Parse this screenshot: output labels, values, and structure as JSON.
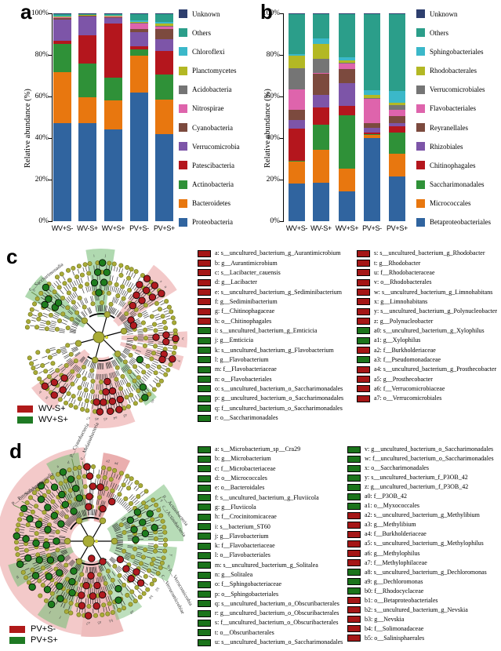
{
  "chart_data": [
    {
      "id": "a",
      "panel_label": "a",
      "type": "bar",
      "stacked": true,
      "title": "",
      "xlabel": "",
      "ylabel": "Relative abundance (%)",
      "ylim": [
        0,
        100
      ],
      "yticks": [
        "0%",
        "20%",
        "40%",
        "60%",
        "80%",
        "100%"
      ],
      "legend_position": "right",
      "grid": false,
      "categories": [
        "WV+S-",
        "WV-S+",
        "WV+S+",
        "PV+S-",
        "PV+S+"
      ],
      "series": [
        {
          "name": "Proteobacteria",
          "color": "#30649f",
          "values": [
            47.5,
            47.5,
            44,
            62,
            42
          ]
        },
        {
          "name": "Bacteroidetes",
          "color": "#e8770f",
          "values": [
            25,
            12.5,
            14,
            17.5,
            16.5
          ]
        },
        {
          "name": "Actinobacteria",
          "color": "#2f9138",
          "values": [
            13.5,
            16.5,
            11,
            3,
            12
          ]
        },
        {
          "name": "Patescibacteria",
          "color": "#b4161d",
          "values": [
            1.5,
            13.5,
            26,
            1.5,
            11.5
          ]
        },
        {
          "name": "Verrucomicrobia",
          "color": "#7d55a8",
          "values": [
            10.5,
            9.5,
            3,
            7,
            5.5
          ]
        },
        {
          "name": "Cyanobacteria",
          "color": "#7c4a3e",
          "values": [
            1,
            0.3,
            0.3,
            1.5,
            5
          ]
        },
        {
          "name": "Nitrospirae",
          "color": "#de64ac",
          "values": [
            0.2,
            0.2,
            0.3,
            2.5,
            1
          ]
        },
        {
          "name": "Acidobacteria",
          "color": "#757575",
          "values": [
            0.2,
            0.1,
            0.2,
            0.3,
            0.5
          ]
        },
        {
          "name": "Planctomycetes",
          "color": "#b3b824",
          "values": [
            0.2,
            0.1,
            0.2,
            0.5,
            1
          ]
        },
        {
          "name": "Chloroflexi",
          "color": "#3bb8c9",
          "values": [
            0.2,
            0.1,
            0.5,
            0.7,
            1
          ]
        },
        {
          "name": "Others",
          "color": "#2b9e8a",
          "values": [
            1,
            0.3,
            0.3,
            3,
            3.5
          ]
        },
        {
          "name": "Unknown",
          "color": "#2e3f6e",
          "values": [
            0.2,
            0.2,
            0.2,
            0.5,
            0.5
          ]
        }
      ]
    },
    {
      "id": "b",
      "panel_label": "b",
      "type": "bar",
      "stacked": true,
      "title": "",
      "xlabel": "",
      "ylabel": "Relative abundance (%)",
      "ylim": [
        0,
        100
      ],
      "yticks": [
        "0%",
        "20%",
        "40%",
        "60%",
        "80%",
        "100%"
      ],
      "legend_position": "right",
      "grid": false,
      "categories": [
        "WV+S-",
        "WV-S+",
        "WV+S+",
        "PV+S-",
        "PV+S+"
      ],
      "series": [
        {
          "name": "Betaproteobacteriales",
          "color": "#30649f",
          "values": [
            18,
            18.5,
            14.5,
            40,
            21.5
          ]
        },
        {
          "name": "Micrococcales",
          "color": "#e8770f",
          "values": [
            10.5,
            16,
            11,
            1.5,
            11
          ]
        },
        {
          "name": "Saccharimonadales",
          "color": "#2f9138",
          "values": [
            0.5,
            12,
            25.5,
            0.3,
            10
          ]
        },
        {
          "name": "Chitinophagales",
          "color": "#b4161d",
          "values": [
            15.5,
            8.5,
            4.5,
            1,
            3
          ]
        },
        {
          "name": "Rhizobiales",
          "color": "#7d55a8",
          "values": [
            4,
            6,
            11,
            2,
            1.5
          ]
        },
        {
          "name": "Reyranellales",
          "color": "#7c4a3e",
          "values": [
            5,
            10,
            7,
            2.5,
            3.5
          ]
        },
        {
          "name": "Flavobacteriales",
          "color": "#de64ac",
          "values": [
            10,
            0.5,
            2.5,
            11.5,
            3
          ]
        },
        {
          "name": "Verrucomicrobiales",
          "color": "#757575",
          "values": [
            10,
            7,
            0.5,
            0.3,
            2.5
          ]
        },
        {
          "name": "Rhodobacterales",
          "color": "#b3b824",
          "values": [
            6,
            7,
            1,
            1.5,
            1
          ]
        },
        {
          "name": "Sphingobacteriales",
          "color": "#3bb8c9",
          "values": [
            1,
            2.5,
            1.5,
            2.5,
            5.5
          ]
        },
        {
          "name": "Others",
          "color": "#2b9e8a",
          "values": [
            19,
            12,
            21,
            36.5,
            37
          ]
        },
        {
          "name": "Unknown",
          "color": "#2e3f6e",
          "values": [
            0.5,
            0.3,
            0.3,
            0.4,
            0.5
          ]
        }
      ]
    }
  ],
  "lefse_colors": {
    "red": "#a51616",
    "green": "#1b741b"
  },
  "panel_c": {
    "label": "c",
    "groups": [
      {
        "label": "WV-S+",
        "color": "#b01a1a"
      },
      {
        "label": "WV+S+",
        "color": "#1f7a24"
      }
    ],
    "clade_labels": [
      {
        "text": "c__Saccharimonadia",
        "a": 303,
        "r": 108,
        "rot": -38
      }
    ],
    "tip_letters": [
      {
        "a": 47,
        "t": "s"
      },
      {
        "a": 52,
        "t": "u"
      },
      {
        "a": 91,
        "t": "w"
      },
      {
        "a": 107,
        "t": "y"
      },
      {
        "a": 163,
        "t": "a2"
      },
      {
        "a": 170,
        "t": "a4"
      },
      {
        "a": 177,
        "t": "a5"
      },
      {
        "a": 183,
        "t": "a6"
      },
      {
        "a": 189,
        "t": "a7"
      },
      {
        "a": 222,
        "t": "g"
      },
      {
        "a": 228,
        "t": "h"
      },
      {
        "a": 355,
        "t": "i"
      },
      {
        "a": 3,
        "t": "j"
      },
      {
        "a": 305,
        "t": "o"
      },
      {
        "a": 311,
        "t": "r"
      },
      {
        "a": 141,
        "t": "a0"
      }
    ],
    "legend_col1": [
      {
        "key": "a",
        "text": "s__uncultured_bacterium_g_Aurantimicrobium",
        "group": "red"
      },
      {
        "key": "b",
        "text": "g__Aurantimicrobium",
        "group": "red"
      },
      {
        "key": "c",
        "text": "s__Lacibacter_cauensis",
        "group": "red"
      },
      {
        "key": "d",
        "text": "g__Lacibacter",
        "group": "red"
      },
      {
        "key": "e",
        "text": "s__uncultured_bacterium_g_Sediminibacterium",
        "group": "red"
      },
      {
        "key": "f",
        "text": "g__Sediminibacterium",
        "group": "red"
      },
      {
        "key": "g",
        "text": "f__Chitinophagaceae",
        "group": "red"
      },
      {
        "key": "h",
        "text": "o__Chitinophagales",
        "group": "red"
      },
      {
        "key": "i",
        "text": "s__uncultured_bacterium_g_Emticicia",
        "group": "green"
      },
      {
        "key": "j",
        "text": "g__Emticicia",
        "group": "green"
      },
      {
        "key": "k",
        "text": "s__uncultured_bacterium_g_Flavobacterium",
        "group": "green"
      },
      {
        "key": "l",
        "text": "g__Flavobacterium",
        "group": "green"
      },
      {
        "key": "m",
        "text": "f__Flavobacteriaceae",
        "group": "green"
      },
      {
        "key": "n",
        "text": "o__Flavobacteriales",
        "group": "green"
      },
      {
        "key": "o",
        "text": "s__uncultured_bacterium_o_Saccharimonadales",
        "group": "green"
      },
      {
        "key": "p",
        "text": "g__uncultured_bacterium_o_Saccharimonadales",
        "group": "green"
      },
      {
        "key": "q",
        "text": "f__uncultured_bacterium_o_Saccharimonadales",
        "group": "green"
      },
      {
        "key": "r",
        "text": "o__Saccharimonadales",
        "group": "green"
      }
    ],
    "legend_col2": [
      {
        "key": "s",
        "text": "s__uncultured_bacterium_g_Rhodobacter",
        "group": "red"
      },
      {
        "key": "t",
        "text": "g__Rhodobacter",
        "group": "red"
      },
      {
        "key": "u",
        "text": "f__Rhodobacteraceae",
        "group": "red"
      },
      {
        "key": "v",
        "text": "o__Rhodobacterales",
        "group": "red"
      },
      {
        "key": "w",
        "text": "s__uncultured_bacterium_g_Limnohabitans",
        "group": "red"
      },
      {
        "key": "x",
        "text": "g__Limnohabitans",
        "group": "red"
      },
      {
        "key": "y",
        "text": "s__uncultured_bacterium_g_Polynucleobacter",
        "group": "red"
      },
      {
        "key": "z",
        "text": "g__Polynucleobacter",
        "group": "red"
      },
      {
        "key": "a0",
        "text": "s__uncultured_bacterium_g_Xylophilus",
        "group": "green"
      },
      {
        "key": "a1",
        "text": "g__Xylophilus",
        "group": "green"
      },
      {
        "key": "a2",
        "text": "f__Burkholderiaceae",
        "group": "red"
      },
      {
        "key": "a3",
        "text": "f__Pseudomonadaceae",
        "group": "green"
      },
      {
        "key": "a4",
        "text": "s__uncultured_bacterium_g_Prosthecobacter",
        "group": "red"
      },
      {
        "key": "a5",
        "text": "g__Prosthecobacter",
        "group": "red"
      },
      {
        "key": "a6",
        "text": "f__Verrucomicrobiaceae",
        "group": "red"
      },
      {
        "key": "a7",
        "text": "o__Verrucomicrobiales",
        "group": "red"
      }
    ]
  },
  "panel_d": {
    "label": "d",
    "groups": [
      {
        "label": "PV+S-",
        "color": "#b01a1a"
      },
      {
        "label": "PV+S+",
        "color": "#1f7a24"
      }
    ],
    "clade_labels": [
      {
        "text": "p__Cyanobacteria",
        "a": 347,
        "r": 110,
        "rot": -62
      },
      {
        "text": "c__Melainabacteria",
        "a": 354,
        "r": 104,
        "rot": -66
      },
      {
        "text": "p__Patescibacteria",
        "a": 295,
        "r": 110,
        "rot": -35
      },
      {
        "text": "c__Saccharimonadia",
        "a": 300,
        "r": 104,
        "rot": -38
      },
      {
        "text": "p__Actinobacteria",
        "a": 58,
        "r": 108,
        "rot": 52
      },
      {
        "text": "c__Actinobacteria",
        "a": 64,
        "r": 101,
        "rot": 55
      },
      {
        "text": "p__Verrucomicrobia",
        "a": 110,
        "r": 106,
        "rot": 60
      },
      {
        "text": "c__Verrucomicrobiae",
        "a": 116,
        "r": 100,
        "rot": 62
      }
    ],
    "tip_letters": [
      {
        "a": 12,
        "t": "a2"
      },
      {
        "a": 18,
        "t": "a4"
      },
      {
        "a": 60,
        "t": "q"
      },
      {
        "a": 68,
        "t": "t"
      },
      {
        "a": 100,
        "t": "y"
      },
      {
        "a": 108,
        "t": "a0"
      },
      {
        "a": 126,
        "t": "b2"
      },
      {
        "a": 133,
        "t": "b4"
      },
      {
        "a": 150,
        "t": "a8"
      },
      {
        "a": 166,
        "t": "b1"
      },
      {
        "a": 174,
        "t": "a5"
      },
      {
        "a": 182,
        "t": "a7"
      },
      {
        "a": 202,
        "t": "f"
      },
      {
        "a": 210,
        "t": "l"
      },
      {
        "a": 244,
        "t": "m"
      },
      {
        "a": 336,
        "t": "a"
      },
      {
        "a": 344,
        "t": "d"
      }
    ],
    "legend_col1": [
      {
        "key": "a",
        "text": "s__Microbacterium_sp__Cra29",
        "group": "green"
      },
      {
        "key": "b",
        "text": "g__Microbacterium",
        "group": "green"
      },
      {
        "key": "c",
        "text": "f__Microbacteriaceae",
        "group": "green"
      },
      {
        "key": "d",
        "text": "o__Micrococcales",
        "group": "green"
      },
      {
        "key": "e",
        "text": "o__Bacteroidales",
        "group": "green"
      },
      {
        "key": "f",
        "text": "s__uncultured_bacterium_g_Fluviicola",
        "group": "green"
      },
      {
        "key": "g",
        "text": "g__Fluviicola",
        "group": "green"
      },
      {
        "key": "h",
        "text": "f__Crocinitomicaceae",
        "group": "green"
      },
      {
        "key": "i",
        "text": "s__bacterium_ST60",
        "group": "green"
      },
      {
        "key": "j",
        "text": "g__Flavobacterium",
        "group": "green"
      },
      {
        "key": "k",
        "text": "f__Flavobacteriaceae",
        "group": "green"
      },
      {
        "key": "l",
        "text": "o__Flavobacteriales",
        "group": "green"
      },
      {
        "key": "m",
        "text": "s__uncultured_bacterium_g_Solitalea",
        "group": "green"
      },
      {
        "key": "n",
        "text": "g__Solitalea",
        "group": "green"
      },
      {
        "key": "o",
        "text": "f__Sphingobacteriaceae",
        "group": "green"
      },
      {
        "key": "p",
        "text": "o__Sphingobacteriales",
        "group": "green"
      },
      {
        "key": "q",
        "text": "s__uncultured_bacterium_o_Obscuribacterales",
        "group": "green"
      },
      {
        "key": "r",
        "text": "g__uncultured_bacterium_o_Obscuribacterales",
        "group": "green"
      },
      {
        "key": "s",
        "text": "f__uncultured_bacterium_o_Obscuribacterales",
        "group": "green"
      },
      {
        "key": "t",
        "text": "o__Obscuribacterales",
        "group": "green"
      },
      {
        "key": "u",
        "text": "s__uncultured_bacterium_o_Saccharimonadales",
        "group": "green"
      }
    ],
    "legend_col2": [
      {
        "key": "v",
        "text": "g__uncultured_bacterium_o_Saccharimonadales",
        "group": "green"
      },
      {
        "key": "w",
        "text": "f__uncultured_bacterium_o_Saccharimonadales",
        "group": "green"
      },
      {
        "key": "x",
        "text": "o__Saccharimonadales",
        "group": "green"
      },
      {
        "key": "y",
        "text": "s__uncultured_bacterium_f_P3OB_42",
        "group": "green"
      },
      {
        "key": "z",
        "text": "g__uncultured_bacterium_f_P3OB_42",
        "group": "green"
      },
      {
        "key": "a0",
        "text": "f__P3OB_42",
        "group": "green"
      },
      {
        "key": "a1",
        "text": "o__Myxococcales",
        "group": "green"
      },
      {
        "key": "a2",
        "text": "s__uncultured_bacterium_g_Methylibium",
        "group": "red"
      },
      {
        "key": "a3",
        "text": "g__Methylibium",
        "group": "red"
      },
      {
        "key": "a4",
        "text": "f__Burkholderiaceae",
        "group": "red"
      },
      {
        "key": "a5",
        "text": "s__uncultured_bacterium_g_Methylophilus",
        "group": "red"
      },
      {
        "key": "a6",
        "text": "g__Methylophilus",
        "group": "red"
      },
      {
        "key": "a7",
        "text": "f__Methylophilaceae",
        "group": "red"
      },
      {
        "key": "a8",
        "text": "s__uncultured_bacterium_g_Dechloromonas",
        "group": "green"
      },
      {
        "key": "a9",
        "text": "g__Dechloromonas",
        "group": "green"
      },
      {
        "key": "b0",
        "text": "f__Rhodocyclaceae",
        "group": "green"
      },
      {
        "key": "b1",
        "text": "o__Betaproteobacteriales",
        "group": "red"
      },
      {
        "key": "b2",
        "text": "s__uncultured_bacterium_g_Nevskia",
        "group": "red"
      },
      {
        "key": "b3",
        "text": "g__Nevskia",
        "group": "red"
      },
      {
        "key": "b4",
        "text": "f__Solimonadaceae",
        "group": "red"
      },
      {
        "key": "b5",
        "text": "o__Salinisphaerales",
        "group": "red"
      }
    ]
  }
}
